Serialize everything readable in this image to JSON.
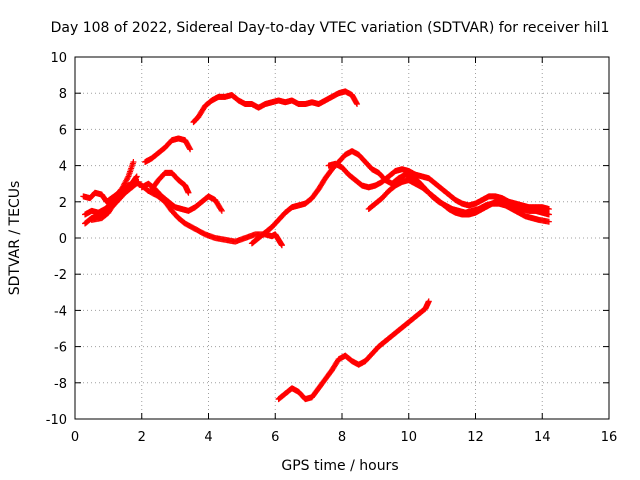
{
  "chart_data": {
    "type": "scatter",
    "title": "Day 108 of 2022, Sidereal Day-to-day VTEC variation (SDTVAR) for receiver hil1",
    "xlabel": "GPS time / hours",
    "ylabel": "SDTVAR / TECUs",
    "xlim": [
      0,
      16
    ],
    "ylim": [
      -10,
      10
    ],
    "xticks": [
      0,
      2,
      4,
      6,
      8,
      10,
      12,
      14,
      16
    ],
    "yticks": [
      -10,
      -8,
      -6,
      -4,
      -2,
      0,
      2,
      4,
      6,
      8,
      10
    ],
    "grid": true,
    "marker": "+",
    "series": [
      {
        "name": "trace-1",
        "color": "#ff0000",
        "points": [
          [
            0.25,
            2.3
          ],
          [
            0.45,
            2.2
          ],
          [
            0.6,
            2.5
          ],
          [
            0.8,
            2.4
          ],
          [
            0.95,
            2.0
          ],
          [
            1.1,
            2.2
          ],
          [
            1.25,
            2.4
          ],
          [
            1.4,
            2.7
          ],
          [
            1.6,
            3.4
          ],
          [
            1.75,
            4.2
          ]
        ]
      },
      {
        "name": "trace-2",
        "color": "#ff0000",
        "points": [
          [
            0.3,
            1.3
          ],
          [
            0.5,
            1.5
          ],
          [
            0.7,
            1.4
          ],
          [
            0.9,
            1.6
          ],
          [
            1.1,
            1.9
          ],
          [
            1.3,
            2.2
          ],
          [
            1.5,
            2.6
          ],
          [
            1.7,
            3.0
          ],
          [
            1.85,
            3.4
          ]
        ]
      },
      {
        "name": "trace-3",
        "color": "#ff0000",
        "points": [
          [
            0.3,
            0.8
          ],
          [
            0.5,
            1.1
          ],
          [
            0.7,
            1.2
          ],
          [
            0.9,
            1.4
          ],
          [
            1.1,
            1.7
          ],
          [
            1.3,
            2.1
          ],
          [
            1.5,
            2.5
          ],
          [
            1.7,
            2.8
          ],
          [
            1.9,
            3.1
          ]
        ]
      },
      {
        "name": "trace-4",
        "color": "#ff0000",
        "points": [
          [
            0.5,
            1.0
          ],
          [
            0.8,
            1.1
          ],
          [
            1.0,
            1.4
          ],
          [
            1.2,
            2.0
          ],
          [
            1.4,
            2.6
          ],
          [
            1.6,
            2.9
          ],
          [
            1.8,
            3.1
          ],
          [
            2.0,
            2.9
          ],
          [
            2.2,
            2.6
          ],
          [
            2.5,
            2.3
          ],
          [
            2.7,
            2.0
          ],
          [
            2.9,
            1.5
          ],
          [
            3.1,
            1.1
          ],
          [
            3.3,
            0.8
          ],
          [
            3.6,
            0.5
          ],
          [
            3.9,
            0.2
          ],
          [
            4.2,
            0.0
          ],
          [
            4.5,
            -0.1
          ],
          [
            4.8,
            -0.2
          ],
          [
            5.1,
            0.0
          ],
          [
            5.4,
            0.2
          ],
          [
            5.7,
            0.2
          ],
          [
            5.9,
            0.1
          ],
          [
            6.0,
            0.2
          ],
          [
            6.1,
            -0.1
          ],
          [
            6.2,
            -0.4
          ]
        ]
      },
      {
        "name": "trace-5",
        "color": "#ff0000",
        "points": [
          [
            2.0,
            2.8
          ],
          [
            2.2,
            3.0
          ],
          [
            2.4,
            2.7
          ],
          [
            2.6,
            2.3
          ],
          [
            2.8,
            2.0
          ],
          [
            3.0,
            1.7
          ],
          [
            3.2,
            1.6
          ],
          [
            3.4,
            1.5
          ],
          [
            3.6,
            1.7
          ],
          [
            3.8,
            2.0
          ],
          [
            4.0,
            2.3
          ],
          [
            4.2,
            2.1
          ],
          [
            4.4,
            1.5
          ]
        ]
      },
      {
        "name": "trace-6",
        "color": "#ff0000",
        "points": [
          [
            2.3,
            2.7
          ],
          [
            2.5,
            3.2
          ],
          [
            2.7,
            3.6
          ],
          [
            2.9,
            3.6
          ],
          [
            3.1,
            3.2
          ],
          [
            3.3,
            2.9
          ],
          [
            3.4,
            2.5
          ]
        ]
      },
      {
        "name": "trace-7",
        "color": "#ff0000",
        "points": [
          [
            2.1,
            4.2
          ],
          [
            2.3,
            4.4
          ],
          [
            2.5,
            4.7
          ],
          [
            2.7,
            5.0
          ],
          [
            2.9,
            5.4
          ],
          [
            3.1,
            5.5
          ],
          [
            3.3,
            5.4
          ],
          [
            3.45,
            4.9
          ]
        ]
      },
      {
        "name": "trace-8",
        "color": "#ff0000",
        "points": [
          [
            3.55,
            6.4
          ],
          [
            3.7,
            6.7
          ],
          [
            3.9,
            7.3
          ],
          [
            4.1,
            7.6
          ],
          [
            4.3,
            7.8
          ],
          [
            4.5,
            7.8
          ],
          [
            4.7,
            7.9
          ],
          [
            4.9,
            7.6
          ],
          [
            5.1,
            7.4
          ],
          [
            5.3,
            7.4
          ],
          [
            5.5,
            7.2
          ],
          [
            5.7,
            7.4
          ],
          [
            5.9,
            7.5
          ],
          [
            6.1,
            7.6
          ],
          [
            6.3,
            7.5
          ],
          [
            6.5,
            7.6
          ],
          [
            6.7,
            7.4
          ],
          [
            6.9,
            7.4
          ],
          [
            7.1,
            7.5
          ],
          [
            7.3,
            7.4
          ],
          [
            7.5,
            7.6
          ],
          [
            7.7,
            7.8
          ],
          [
            7.9,
            8.0
          ],
          [
            8.1,
            8.1
          ],
          [
            8.3,
            7.9
          ],
          [
            8.45,
            7.4
          ]
        ]
      },
      {
        "name": "trace-9",
        "color": "#ff0000",
        "points": [
          [
            5.3,
            -0.3
          ],
          [
            5.5,
            0.0
          ],
          [
            5.7,
            0.3
          ],
          [
            5.9,
            0.6
          ],
          [
            6.1,
            1.0
          ],
          [
            6.3,
            1.4
          ],
          [
            6.5,
            1.7
          ],
          [
            6.7,
            1.8
          ],
          [
            6.9,
            1.9
          ],
          [
            7.1,
            2.2
          ],
          [
            7.3,
            2.7
          ],
          [
            7.5,
            3.3
          ],
          [
            7.7,
            3.8
          ],
          [
            7.9,
            4.2
          ],
          [
            8.1,
            4.6
          ],
          [
            8.3,
            4.8
          ],
          [
            8.5,
            4.6
          ],
          [
            8.7,
            4.2
          ],
          [
            8.9,
            3.8
          ],
          [
            9.1,
            3.6
          ],
          [
            9.3,
            3.2
          ],
          [
            9.5,
            3.0
          ],
          [
            9.7,
            3.3
          ],
          [
            9.9,
            3.5
          ],
          [
            10.1,
            3.4
          ],
          [
            10.3,
            3.1
          ],
          [
            10.5,
            2.7
          ],
          [
            10.7,
            2.3
          ],
          [
            10.9,
            2.0
          ],
          [
            11.1,
            1.8
          ],
          [
            11.3,
            1.6
          ],
          [
            11.5,
            1.5
          ],
          [
            11.7,
            1.4
          ],
          [
            11.9,
            1.5
          ],
          [
            12.1,
            1.6
          ],
          [
            12.3,
            1.8
          ],
          [
            12.5,
            1.9
          ],
          [
            12.7,
            1.9
          ],
          [
            12.9,
            1.8
          ],
          [
            13.1,
            1.6
          ],
          [
            13.3,
            1.4
          ],
          [
            13.5,
            1.2
          ],
          [
            13.7,
            1.1
          ],
          [
            13.9,
            1.0
          ],
          [
            14.2,
            0.9
          ]
        ]
      },
      {
        "name": "trace-10",
        "color": "#ff0000",
        "points": [
          [
            7.6,
            4.0
          ],
          [
            7.8,
            4.1
          ],
          [
            8.0,
            3.9
          ],
          [
            8.2,
            3.5
          ],
          [
            8.4,
            3.2
          ],
          [
            8.6,
            2.9
          ],
          [
            8.8,
            2.8
          ],
          [
            9.0,
            2.9
          ],
          [
            9.2,
            3.1
          ],
          [
            9.4,
            3.4
          ],
          [
            9.6,
            3.7
          ],
          [
            9.8,
            3.8
          ],
          [
            10.0,
            3.7
          ],
          [
            10.2,
            3.5
          ],
          [
            10.4,
            3.4
          ],
          [
            10.6,
            3.3
          ],
          [
            10.8,
            3.0
          ],
          [
            11.0,
            2.7
          ],
          [
            11.2,
            2.4
          ],
          [
            11.4,
            2.1
          ],
          [
            11.6,
            1.9
          ],
          [
            11.8,
            1.8
          ],
          [
            12.0,
            1.9
          ],
          [
            12.2,
            2.1
          ],
          [
            12.4,
            2.3
          ],
          [
            12.6,
            2.3
          ],
          [
            12.8,
            2.2
          ],
          [
            13.0,
            2.0
          ],
          [
            13.2,
            1.9
          ],
          [
            13.4,
            1.8
          ],
          [
            13.6,
            1.7
          ],
          [
            13.8,
            1.7
          ],
          [
            14.0,
            1.7
          ],
          [
            14.2,
            1.6
          ]
        ]
      },
      {
        "name": "trace-11",
        "color": "#ff0000",
        "points": [
          [
            8.8,
            1.6
          ],
          [
            9.0,
            1.9
          ],
          [
            9.2,
            2.2
          ],
          [
            9.4,
            2.6
          ],
          [
            9.6,
            2.9
          ],
          [
            9.8,
            3.1
          ],
          [
            10.0,
            3.2
          ],
          [
            10.2,
            3.0
          ],
          [
            10.4,
            2.8
          ],
          [
            10.6,
            2.5
          ],
          [
            10.8,
            2.2
          ],
          [
            11.0,
            1.9
          ],
          [
            11.2,
            1.6
          ],
          [
            11.4,
            1.4
          ],
          [
            11.6,
            1.3
          ],
          [
            11.8,
            1.3
          ],
          [
            12.0,
            1.4
          ],
          [
            12.2,
            1.6
          ],
          [
            12.4,
            1.8
          ],
          [
            12.6,
            2.0
          ],
          [
            12.8,
            2.0
          ],
          [
            13.0,
            1.9
          ],
          [
            13.2,
            1.7
          ],
          [
            13.4,
            1.6
          ],
          [
            13.6,
            1.5
          ],
          [
            13.8,
            1.5
          ],
          [
            14.0,
            1.4
          ],
          [
            14.2,
            1.3
          ]
        ]
      },
      {
        "name": "trace-12",
        "color": "#ff0000",
        "points": [
          [
            6.1,
            -8.9
          ],
          [
            6.3,
            -8.6
          ],
          [
            6.5,
            -8.3
          ],
          [
            6.7,
            -8.5
          ],
          [
            6.9,
            -8.9
          ],
          [
            7.1,
            -8.8
          ],
          [
            7.3,
            -8.3
          ],
          [
            7.5,
            -7.8
          ],
          [
            7.7,
            -7.3
          ],
          [
            7.9,
            -6.7
          ],
          [
            8.1,
            -6.5
          ],
          [
            8.3,
            -6.8
          ],
          [
            8.5,
            -7.0
          ],
          [
            8.7,
            -6.8
          ],
          [
            8.9,
            -6.4
          ],
          [
            9.1,
            -6.0
          ],
          [
            9.3,
            -5.7
          ],
          [
            9.5,
            -5.4
          ],
          [
            9.7,
            -5.1
          ],
          [
            9.9,
            -4.8
          ],
          [
            10.1,
            -4.5
          ],
          [
            10.3,
            -4.2
          ],
          [
            10.5,
            -3.9
          ],
          [
            10.6,
            -3.5
          ]
        ]
      }
    ]
  }
}
